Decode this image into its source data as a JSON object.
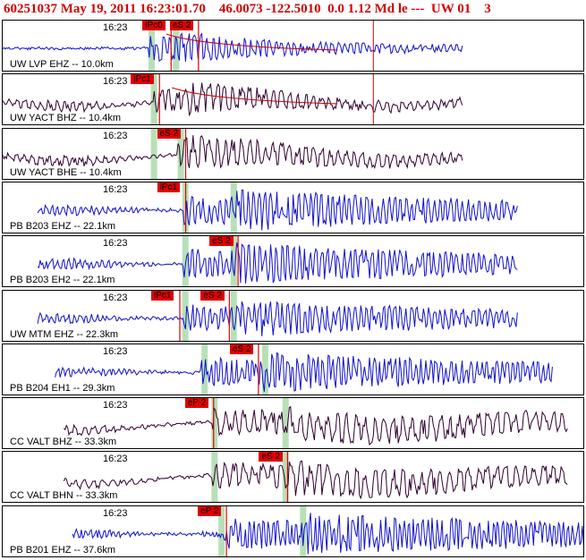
{
  "header": {
    "event_id": "60251037",
    "datetime": "May 19, 2011 16:23:01.70",
    "lat": "46.0073",
    "lon": "-122.5010",
    "depth": "0.0",
    "magnitude": "1.12",
    "mag_type": "Md le",
    "flags": "---",
    "network": "UW 01",
    "extra": "3"
  },
  "colors": {
    "blue_trace": "#1010cc",
    "black_trace": "#300030",
    "pick": "#e00000",
    "window": "#b8e0b8",
    "fit": "#cc0000"
  },
  "traces": [
    {
      "station": "UW LVP EHZ -- 10.0km",
      "time": "16:23",
      "color": "blue",
      "picks": [
        {
          "label": "iPc0",
          "pos": 0.24
        },
        {
          "label": "eS 2",
          "pos": 0.287
        }
      ],
      "windows": [
        0.255,
        0.297
      ],
      "start": 0.0,
      "end": 0.79,
      "onset": 0.25,
      "s_onset": 0.3,
      "amp": 22,
      "decay": 0.15,
      "freq": 0.9,
      "seed": 1,
      "coda": true,
      "flat_pre": true
    },
    {
      "station": "UW YACT BHZ -- 10.4km",
      "time": "16:23",
      "color": "black",
      "picks": [
        {
          "label": "iPc1",
          "pos": 0.22
        }
      ],
      "windows": [
        0.259
      ],
      "start": 0.0,
      "end": 0.79,
      "onset": 0.26,
      "s_onset": 0.32,
      "amp": 20,
      "decay": 0.2,
      "freq": 0.7,
      "seed": 2,
      "coda": true
    },
    {
      "station": "UW YACT BHE -- 10.4km",
      "time": "16:23",
      "color": "black",
      "picks": [
        {
          "label": "eS 2",
          "pos": 0.265
        }
      ],
      "windows": [
        0.259,
        0.305
      ],
      "start": 0.0,
      "end": 0.79,
      "onset": 0.3,
      "s_onset": 0.31,
      "amp": 18,
      "decay": 0.25,
      "freq": 0.7,
      "seed": 3
    },
    {
      "station": "PB B203 EHZ -- 22.1km",
      "time": "16:23",
      "color": "blue",
      "picks": [
        {
          "label": "iPc1",
          "pos": 0.265
        }
      ],
      "windows": [
        0.313,
        0.396
      ],
      "start": 0.06,
      "end": 0.885,
      "onset": 0.31,
      "s_onset": 0.4,
      "amp": 24,
      "decay": 0.5,
      "freq": 1.0,
      "seed": 4
    },
    {
      "station": "PB B203 EH2 -- 22.1km",
      "time": "16:23",
      "color": "blue",
      "picks": [
        {
          "label": "eS 2",
          "pos": 0.355
        }
      ],
      "windows": [
        0.313,
        0.396
      ],
      "start": 0.06,
      "end": 0.885,
      "onset": 0.31,
      "s_onset": 0.4,
      "amp": 24,
      "decay": 0.5,
      "freq": 1.0,
      "seed": 5
    },
    {
      "station": "UW MTM EHZ -- 22.3km",
      "time": "16:23",
      "color": "blue",
      "picks": [
        {
          "label": "iPc1",
          "pos": 0.255
        },
        {
          "label": "eS 2",
          "pos": 0.34
        }
      ],
      "windows": [
        0.313,
        0.396
      ],
      "start": 0.06,
      "end": 0.885,
      "onset": 0.31,
      "s_onset": 0.41,
      "amp": 22,
      "decay": 0.45,
      "freq": 1.0,
      "seed": 6
    },
    {
      "station": "PB B204 EH1 -- 29.3km",
      "time": "16:23",
      "color": "blue",
      "picks": [
        {
          "label": "eS 2",
          "pos": 0.39
        }
      ],
      "windows": [
        0.346,
        0.45
      ],
      "start": 0.09,
      "end": 0.945,
      "onset": 0.34,
      "s_onset": 0.44,
      "amp": 22,
      "decay": 0.6,
      "freq": 1.1,
      "seed": 7
    },
    {
      "station": "CC VALT BHZ -- 33.3km",
      "time": "16:23",
      "color": "black",
      "picks": [
        {
          "label": "eP 2",
          "pos": 0.313
        }
      ],
      "windows": [
        0.363,
        0.485
      ],
      "start": 0.105,
      "end": 0.97,
      "onset": 0.36,
      "s_onset": 0.49,
      "amp": 20,
      "decay": 0.6,
      "freq": 0.6,
      "seed": 8
    },
    {
      "station": "CC VALT BHN -- 33.3km",
      "time": "16:23",
      "color": "black",
      "picks": [
        {
          "label": "eS 2",
          "pos": 0.44
        }
      ],
      "windows": [
        0.363,
        0.485
      ],
      "start": 0.105,
      "end": 0.97,
      "onset": 0.36,
      "s_onset": 0.49,
      "amp": 20,
      "decay": 0.6,
      "freq": 0.6,
      "seed": 9
    },
    {
      "station": "PB B201 EHZ -- 37.6km",
      "time": "16:23",
      "color": "blue",
      "picks": [
        {
          "label": "eP 2",
          "pos": 0.335
        }
      ],
      "windows": [
        0.375,
        0.515
      ],
      "start": 0.12,
      "end": 1.0,
      "onset": 0.38,
      "s_onset": 0.52,
      "amp": 24,
      "decay": 0.7,
      "freq": 1.2,
      "seed": 10
    }
  ]
}
